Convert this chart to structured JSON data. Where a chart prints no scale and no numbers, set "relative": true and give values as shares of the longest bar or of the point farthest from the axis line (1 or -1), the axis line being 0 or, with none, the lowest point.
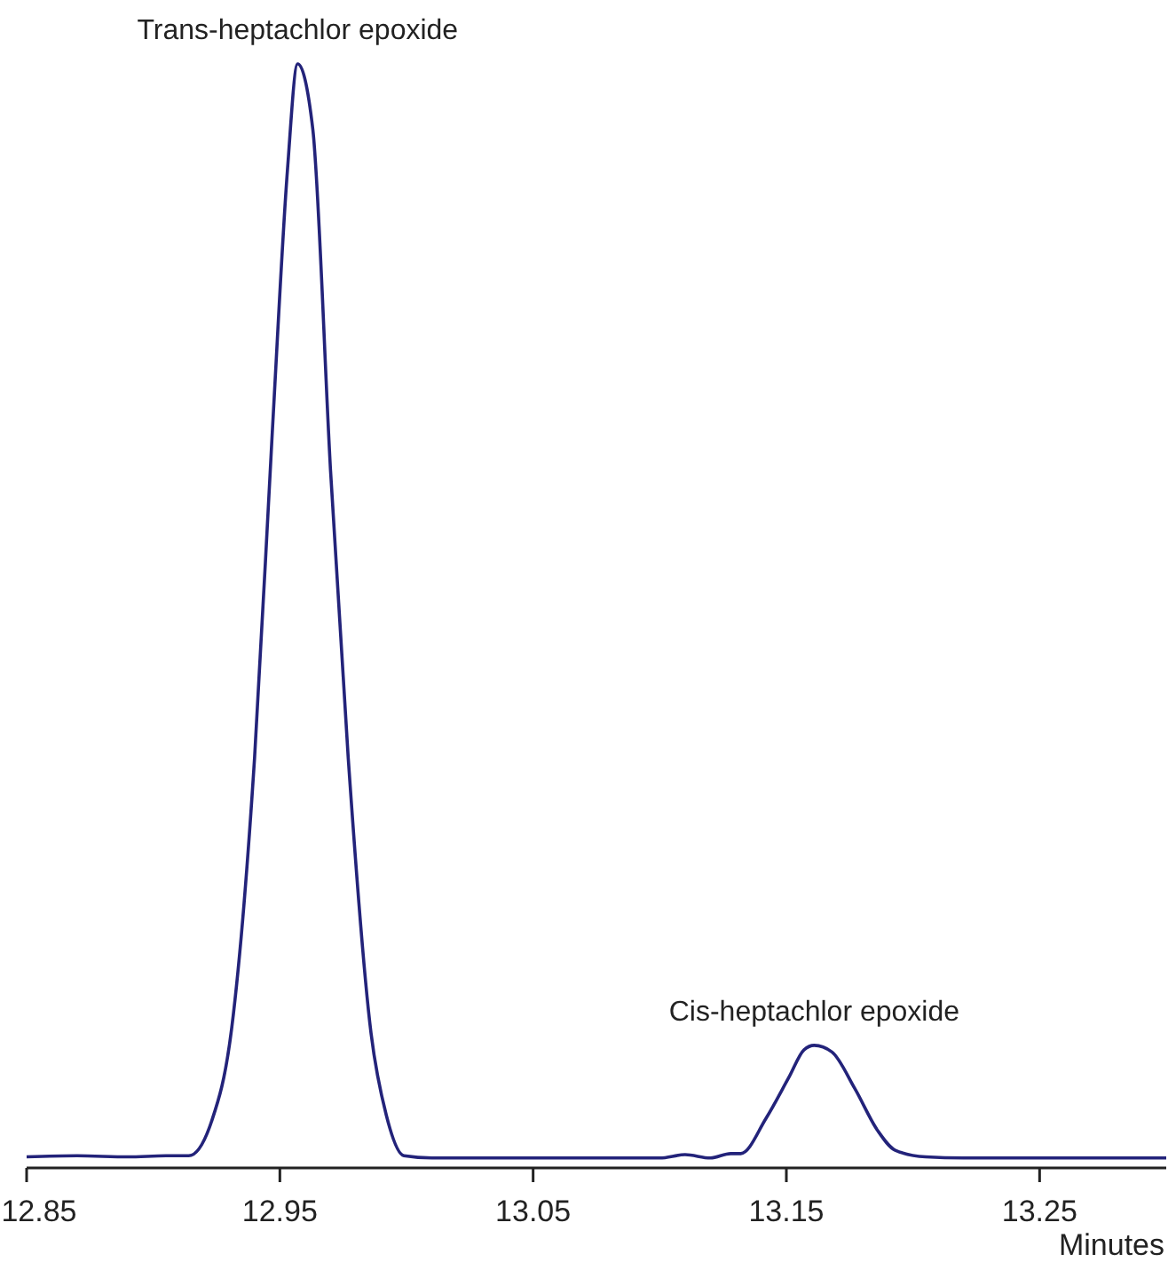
{
  "chart_data": {
    "type": "line",
    "relative": true,
    "xlabel": "Minutes",
    "xlim": [
      12.85,
      13.3
    ],
    "xticks": [
      12.85,
      12.95,
      13.05,
      13.15,
      13.25
    ],
    "series": [
      {
        "color": "#23237a",
        "x": [
          12.85,
          12.87,
          12.89,
          12.905,
          12.914,
          12.923,
          12.931,
          12.94,
          12.947,
          12.953,
          12.957,
          12.963,
          12.97,
          12.977,
          12.986,
          12.992,
          12.999,
          13.01,
          13.04,
          13.07,
          13.1,
          13.11,
          13.12,
          13.128,
          13.132,
          13.142,
          13.151,
          13.157,
          13.161,
          13.168,
          13.177,
          13.186,
          13.193,
          13.205,
          13.22,
          13.25,
          13.28,
          13.3
        ],
        "values": [
          0.01,
          0.011,
          0.01,
          0.011,
          0.011,
          0.042,
          0.127,
          0.371,
          0.666,
          0.904,
          1,
          0.941,
          0.632,
          0.371,
          0.122,
          0.048,
          0.011,
          0.009,
          0.009,
          0.009,
          0.009,
          0.012,
          0.009,
          0.013,
          0.013,
          0.045,
          0.082,
          0.107,
          0.111,
          0.105,
          0.072,
          0.034,
          0.016,
          0.01,
          0.009,
          0.009,
          0.009,
          0.009
        ]
      }
    ],
    "annotations": [
      {
        "text": "Trans-heptachlor epoxide",
        "x": 12.957,
        "y": 1
      },
      {
        "text": "Cis-heptachlor epoxide",
        "x": 13.161,
        "y": 0.111
      }
    ]
  }
}
